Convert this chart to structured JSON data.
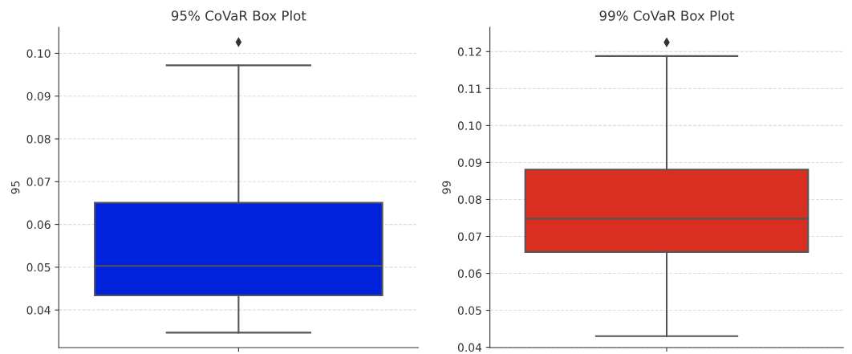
{
  "chart_data": [
    {
      "type": "box",
      "title": "95% CoVaR Box Plot",
      "ylabel": "95",
      "categories": [
        null
      ],
      "tick_labels": "y",
      "grid": "y",
      "ylim": [
        0.0312,
        0.1061
      ],
      "yticks": [
        {
          "value": 0.04,
          "label": "0.04"
        },
        {
          "value": 0.05,
          "label": "0.05"
        },
        {
          "value": 0.06,
          "label": "0.06"
        },
        {
          "value": 0.07,
          "label": "0.07"
        },
        {
          "value": 0.08,
          "label": "0.08"
        },
        {
          "value": 0.09,
          "label": "0.09"
        },
        {
          "value": 0.1,
          "label": "0.10"
        }
      ],
      "series": [
        {
          "color": "#0022dd",
          "boxes": [
            {
              "low": 0.0347,
              "q1": 0.0434,
              "median": 0.0503,
              "q3": 0.0651,
              "high": 0.0972,
              "outliers": [
                0.1026
              ]
            }
          ]
        }
      ]
    },
    {
      "type": "box",
      "title": "99% CoVaR Box Plot",
      "ylabel": "99",
      "categories": [
        null
      ],
      "tick_labels": "y",
      "grid": "y",
      "ylim": [
        0.0399,
        0.1266
      ],
      "yticks": [
        {
          "value": 0.04,
          "label": "0.04"
        },
        {
          "value": 0.05,
          "label": "0.05"
        },
        {
          "value": 0.06,
          "label": "0.06"
        },
        {
          "value": 0.07,
          "label": "0.07"
        },
        {
          "value": 0.08,
          "label": "0.08"
        },
        {
          "value": 0.09,
          "label": "0.09"
        },
        {
          "value": 0.1,
          "label": "0.10"
        },
        {
          "value": 0.11,
          "label": "0.11"
        },
        {
          "value": 0.12,
          "label": "0.12"
        }
      ],
      "series": [
        {
          "color": "#d92f20",
          "boxes": [
            {
              "low": 0.043,
              "q1": 0.0658,
              "median": 0.0748,
              "q3": 0.0881,
              "high": 0.1188,
              "outliers": [
                0.1225
              ]
            }
          ]
        }
      ]
    }
  ]
}
